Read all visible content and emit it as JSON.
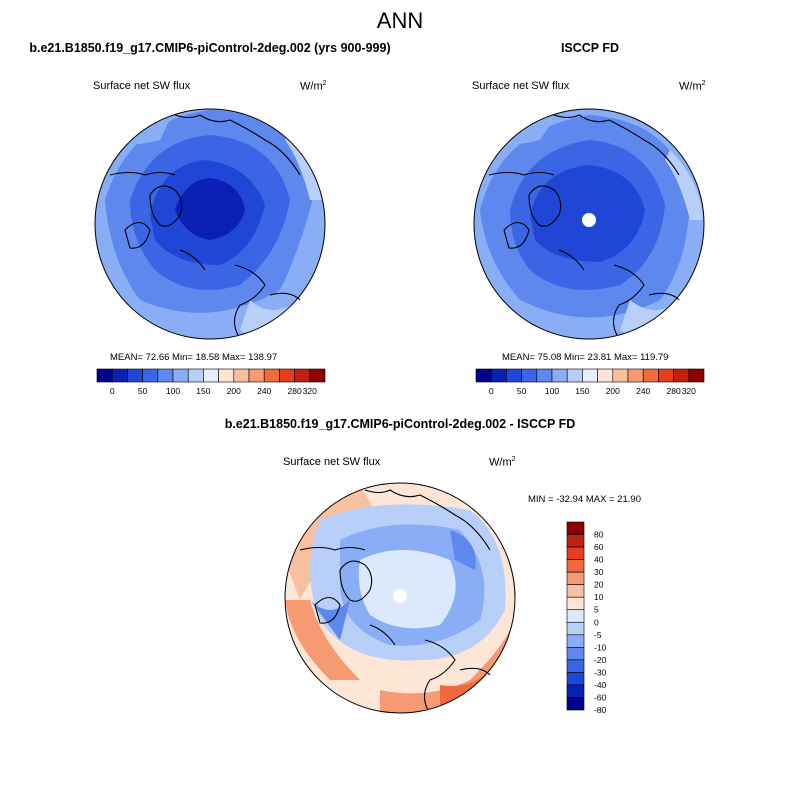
{
  "page_title": "ANN",
  "panels": [
    {
      "title": "b.e21.B1850.f19_g17.CMIP6-piControl-2deg.002 (yrs 900-999)",
      "variable": "Surface net SW flux",
      "units": "W/m",
      "units_exp": "2",
      "stats": "MEAN=  72.66  Min=  18.58  Max= 138.97",
      "colorbar_ticks": [
        "0",
        "50",
        "100",
        "150",
        "200",
        "240",
        "280",
        "320"
      ]
    },
    {
      "title": "ISCCP FD",
      "variable": "Surface net SW flux",
      "units": "W/m",
      "units_exp": "2",
      "stats": "MEAN=  75.08  Min=  23.81  Max= 119.79",
      "colorbar_ticks": [
        "0",
        "50",
        "100",
        "150",
        "200",
        "240",
        "280",
        "320"
      ]
    },
    {
      "title": "b.e21.B1850.f19_g17.CMIP6-piControl-2deg.002 - ISCCP FD",
      "variable": "Surface net SW flux",
      "units": "W/m",
      "units_exp": "2",
      "stats": "MIN = -32.94 MAX =  21.90",
      "colorbar_ticks": [
        "80",
        "60",
        "40",
        "30",
        "20",
        "10",
        "5",
        "0",
        "-5",
        "-10",
        "-20",
        "-30",
        "-40",
        "-60",
        "-80"
      ]
    }
  ],
  "colors": {
    "abs_scale": [
      "#00008c",
      "#0a1fb3",
      "#1f46d6",
      "#3a66e6",
      "#5e88ee",
      "#8aaef5",
      "#b8cffa",
      "#e6eefd",
      "#fde6d6",
      "#f9c0a0",
      "#f59a72",
      "#f06a40",
      "#e63d1e",
      "#c41e0e",
      "#8c0000"
    ],
    "diff_scale": [
      "#8c0000",
      "#c41e0e",
      "#e63d1e",
      "#f06a40",
      "#f59a72",
      "#f9c0a0",
      "#fde6d6",
      "#dce8fb",
      "#b8cffa",
      "#8aaef5",
      "#5e88ee",
      "#3a66e6",
      "#1f46d6",
      "#0a1fb3",
      "#00008c"
    ]
  }
}
